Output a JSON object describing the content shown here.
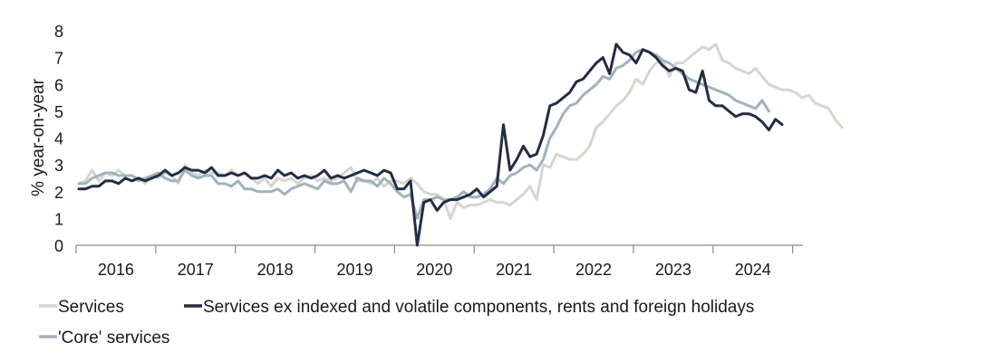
{
  "chart_data": {
    "type": "line",
    "ylabel": "% year-on-year",
    "xlabel": "",
    "ylim": [
      0,
      8
    ],
    "yticks": [
      0,
      1,
      2,
      3,
      4,
      5,
      6,
      7,
      8
    ],
    "year_labels": [
      "2016",
      "2017",
      "2018",
      "2019",
      "2020",
      "2021",
      "2022",
      "2023",
      "2024"
    ],
    "x_start": "2016-01",
    "grid": false,
    "legend_position": "bottom",
    "series": [
      {
        "name": "Services",
        "color": "#d6d6cf",
        "values": [
          2.3,
          2.4,
          2.8,
          2.4,
          2.7,
          2.6,
          2.8,
          2.6,
          2.6,
          2.5,
          2.3,
          2.6,
          2.5,
          2.7,
          2.6,
          2.3,
          3.0,
          2.7,
          2.6,
          2.8,
          2.7,
          2.7,
          2.6,
          2.8,
          2.6,
          2.7,
          2.5,
          2.3,
          2.5,
          2.2,
          2.5,
          2.4,
          2.5,
          2.3,
          2.5,
          2.6,
          2.4,
          2.5,
          2.4,
          2.5,
          2.7,
          2.9,
          2.4,
          2.4,
          2.3,
          2.5,
          2.2,
          2.4,
          2.4,
          2.3,
          2.5,
          2.3,
          2.0,
          1.9,
          1.9,
          1.7,
          1.0,
          1.6,
          1.4,
          1.5,
          1.5,
          1.6,
          1.7,
          1.6,
          1.6,
          1.5,
          1.7,
          1.9,
          2.2,
          1.7,
          3.0,
          2.9,
          3.4,
          3.3,
          3.2,
          3.2,
          3.4,
          3.7,
          4.4,
          4.6,
          4.9,
          5.2,
          5.4,
          5.7,
          6.2,
          6.0,
          6.5,
          6.8,
          6.9,
          6.3,
          6.8,
          6.8,
          7.0,
          7.2,
          7.4,
          7.3,
          7.5,
          6.9,
          6.8,
          6.6,
          6.5,
          6.4,
          6.6,
          6.3,
          6.0,
          5.9,
          5.8,
          5.8,
          5.7,
          5.5,
          5.6,
          5.3,
          5.2,
          5.1,
          4.7,
          4.4
        ]
      },
      {
        "name": "Services ex indexed and volatile components, rents and foreign holidays",
        "color": "#232d44",
        "values": [
          2.1,
          2.1,
          2.2,
          2.2,
          2.4,
          2.4,
          2.3,
          2.5,
          2.4,
          2.5,
          2.4,
          2.5,
          2.6,
          2.8,
          2.6,
          2.7,
          2.9,
          2.8,
          2.8,
          2.7,
          2.9,
          2.6,
          2.6,
          2.7,
          2.6,
          2.7,
          2.5,
          2.5,
          2.6,
          2.5,
          2.8,
          2.6,
          2.7,
          2.5,
          2.6,
          2.5,
          2.6,
          2.8,
          2.5,
          2.6,
          2.5,
          2.6,
          2.7,
          2.8,
          2.7,
          2.6,
          2.8,
          2.7,
          2.1,
          2.1,
          2.4,
          0.0,
          1.6,
          1.7,
          1.3,
          1.6,
          1.7,
          1.7,
          1.8,
          1.9,
          2.1,
          1.8,
          2.0,
          2.2,
          4.5,
          2.8,
          3.2,
          3.7,
          3.3,
          3.4,
          4.1,
          5.2,
          5.3,
          5.5,
          5.7,
          6.1,
          6.2,
          6.5,
          6.8,
          7.0,
          6.4,
          7.5,
          7.2,
          7.1,
          6.8,
          7.3,
          7.2,
          7.0,
          6.7,
          6.5,
          6.6,
          6.5,
          5.8,
          5.7,
          6.5,
          5.4,
          5.2,
          5.2,
          5.0,
          4.8,
          4.9,
          4.9,
          4.8,
          4.6,
          4.3,
          4.7,
          4.5
        ]
      },
      {
        "name": "'Core' services",
        "color": "#9fb3bf",
        "values": [
          2.3,
          2.3,
          2.5,
          2.6,
          2.7,
          2.7,
          2.6,
          2.6,
          2.6,
          2.4,
          2.5,
          2.6,
          2.7,
          2.5,
          2.4,
          2.4,
          2.8,
          2.6,
          2.5,
          2.6,
          2.6,
          2.3,
          2.3,
          2.2,
          2.4,
          2.1,
          2.1,
          2.0,
          2.0,
          2.0,
          2.1,
          1.9,
          2.1,
          2.2,
          2.3,
          2.2,
          2.1,
          2.4,
          2.3,
          2.3,
          2.4,
          2.0,
          2.5,
          2.4,
          2.4,
          2.2,
          2.5,
          2.3,
          2.0,
          1.8,
          1.9,
          1.0,
          1.7,
          1.7,
          1.8,
          1.7,
          1.7,
          1.8,
          2.0,
          1.8,
          1.8,
          1.9,
          2.1,
          2.5,
          2.3,
          2.6,
          2.7,
          2.9,
          3.0,
          2.8,
          3.2,
          4.0,
          4.4,
          4.9,
          5.2,
          5.3,
          5.6,
          5.8,
          6.0,
          6.3,
          6.2,
          6.6,
          6.7,
          6.9,
          7.2,
          7.3,
          7.2,
          7.1,
          6.9,
          6.8,
          6.6,
          6.4,
          6.2,
          6.1,
          6.0,
          5.9,
          5.8,
          5.7,
          5.6,
          5.4,
          5.3,
          5.2,
          5.1,
          5.4,
          5.0
        ]
      }
    ]
  }
}
